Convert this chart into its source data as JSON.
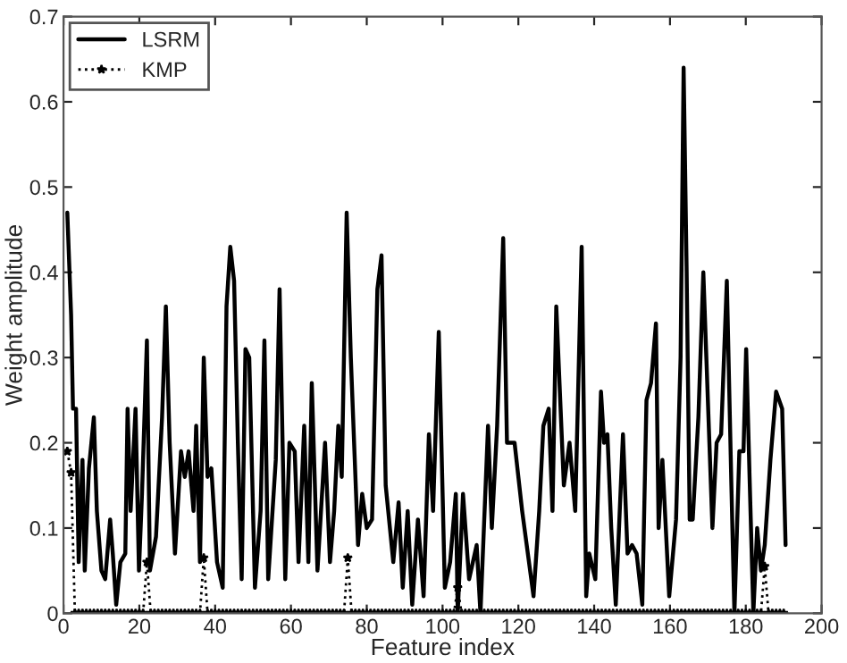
{
  "chart_data": {
    "type": "line",
    "xlabel": "Feature index",
    "ylabel": "Weight amplitude",
    "x": [
      1,
      2,
      3,
      4,
      5,
      6,
      7,
      8,
      9,
      10,
      11,
      12,
      13,
      14,
      15,
      16,
      17,
      18,
      19,
      20,
      21,
      22,
      23,
      24,
      25,
      26,
      27,
      28,
      29,
      30,
      31,
      32,
      33,
      34,
      35,
      36,
      37,
      38,
      39,
      40,
      41,
      42,
      43,
      44,
      45,
      46,
      47,
      48,
      49,
      50,
      51,
      52,
      53,
      54,
      55,
      56,
      57,
      58,
      59,
      60,
      61,
      62,
      63,
      64,
      65,
      66,
      67,
      68,
      69,
      70,
      71,
      72,
      73,
      74,
      75,
      76,
      77,
      78,
      79,
      80,
      81,
      82,
      83,
      84,
      85,
      86,
      87,
      88,
      89,
      90,
      91,
      92,
      93,
      94,
      95,
      96,
      97,
      98,
      99,
      100,
      101,
      102,
      103,
      104,
      105,
      106,
      107,
      108,
      109,
      110,
      111,
      112,
      113,
      114,
      115,
      116,
      117,
      118,
      119,
      120,
      121,
      122,
      123,
      124,
      125,
      126,
      127,
      128,
      129,
      130,
      131,
      132,
      133,
      134,
      135,
      136,
      137,
      138,
      139,
      140,
      141,
      142,
      143,
      144,
      145,
      146,
      147,
      148,
      149,
      150,
      151,
      152,
      153,
      154,
      155,
      156,
      157,
      158,
      159,
      160,
      161,
      162,
      163,
      164,
      165,
      166,
      167,
      168,
      169,
      170,
      171,
      172,
      173,
      174,
      175,
      176,
      177,
      178,
      179,
      180,
      181,
      182,
      183,
      184,
      185,
      186,
      187,
      188,
      189,
      190
    ],
    "series": [
      {
        "name": "LSRM",
        "color": "#000000",
        "marker": "none",
        "line_style": "solid",
        "x": [
          1,
          2,
          2.5,
          3.3,
          4,
          5,
          5.6,
          6.7,
          8,
          8.8,
          10,
          11,
          12.3,
          13,
          13.9,
          15,
          16.3,
          16.9,
          17.7,
          19,
          19.9,
          20.7,
          22,
          22.8,
          24.4,
          26,
          27,
          28,
          29.4,
          31,
          32,
          33,
          34.3,
          35,
          36,
          37,
          38,
          39,
          40.5,
          42,
          43,
          44,
          45,
          46,
          47,
          48,
          49,
          50.5,
          52,
          53,
          54,
          56,
          57,
          58.5,
          59.6,
          61,
          62,
          63.5,
          64.6,
          65.5,
          67,
          69,
          70.3,
          71.4,
          72.5,
          73.4,
          74.7,
          75.8,
          77.7,
          78.8,
          80,
          81.4,
          82.8,
          83.9,
          85,
          87,
          88.4,
          89.5,
          90.8,
          92,
          93.5,
          95,
          96.4,
          97.5,
          99,
          100.6,
          102,
          103.5,
          104,
          105.4,
          107,
          109,
          110,
          112,
          113,
          114.4,
          116,
          117,
          119,
          121,
          124,
          125.5,
          126.6,
          128,
          129,
          130,
          132,
          133.5,
          135,
          136.7,
          137.9,
          138.7,
          140.3,
          141.8,
          142.6,
          143.5,
          144.5,
          145.7,
          147.6,
          148.8,
          150,
          151.2,
          152.7,
          153.8,
          155,
          156.3,
          157,
          158,
          159.8,
          161.6,
          162.8,
          163.6,
          164.4,
          165.2,
          166,
          167.5,
          168.8,
          170.4,
          171.2,
          172.3,
          173.5,
          175,
          176.2,
          177,
          178.3,
          179.4,
          180.1,
          181,
          182,
          183,
          184,
          185,
          186.5,
          188,
          189.6,
          190.5
        ],
        "values": [
          0.47,
          0.35,
          0.24,
          0.24,
          0.06,
          0.18,
          0.05,
          0.17,
          0.23,
          0.12,
          0.05,
          0.04,
          0.11,
          0.07,
          0.01,
          0.06,
          0.07,
          0.24,
          0.12,
          0.24,
          0.05,
          0.14,
          0.32,
          0.05,
          0.09,
          0.23,
          0.36,
          0.2,
          0.07,
          0.19,
          0.16,
          0.19,
          0.12,
          0.22,
          0.06,
          0.3,
          0.16,
          0.17,
          0.06,
          0.03,
          0.36,
          0.43,
          0.39,
          0.2,
          0.04,
          0.31,
          0.3,
          0.03,
          0.12,
          0.32,
          0.04,
          0.18,
          0.38,
          0.04,
          0.2,
          0.19,
          0.06,
          0.22,
          0.06,
          0.27,
          0.05,
          0.2,
          0.06,
          0.12,
          0.22,
          0.16,
          0.47,
          0.3,
          0.08,
          0.14,
          0.1,
          0.11,
          0.38,
          0.42,
          0.15,
          0.06,
          0.13,
          0.03,
          0.12,
          0.01,
          0.11,
          0.02,
          0.21,
          0.12,
          0.33,
          0.03,
          0.06,
          0.14,
          0.0,
          0.14,
          0.04,
          0.08,
          0.0,
          0.22,
          0.1,
          0.22,
          0.44,
          0.2,
          0.2,
          0.12,
          0.02,
          0.12,
          0.22,
          0.24,
          0.12,
          0.36,
          0.15,
          0.2,
          0.12,
          0.43,
          0.02,
          0.07,
          0.04,
          0.26,
          0.2,
          0.21,
          0.1,
          0.01,
          0.21,
          0.07,
          0.08,
          0.07,
          0.01,
          0.25,
          0.27,
          0.34,
          0.1,
          0.18,
          0.02,
          0.11,
          0.3,
          0.64,
          0.4,
          0.11,
          0.11,
          0.23,
          0.4,
          0.2,
          0.1,
          0.2,
          0.21,
          0.39,
          0.15,
          0.0,
          0.19,
          0.19,
          0.31,
          0.16,
          0.0,
          0.1,
          0.05,
          0.08,
          0.18,
          0.26,
          0.24,
          0.08
        ]
      },
      {
        "name": "KMP",
        "color": "#000000",
        "marker": "star",
        "line_style": "dotted",
        "values": [
          0.19,
          0.165,
          0,
          0,
          0,
          0,
          0,
          0,
          0,
          0,
          0,
          0,
          0,
          0,
          0,
          0,
          0,
          0,
          0,
          0,
          0,
          0.06,
          0,
          0,
          0,
          0,
          0,
          0,
          0,
          0,
          0,
          0,
          0,
          0,
          0,
          0,
          0.065,
          0,
          0,
          0,
          0,
          0,
          0,
          0,
          0,
          0,
          0,
          0,
          0,
          0,
          0,
          0,
          0,
          0,
          0,
          0,
          0,
          0,
          0,
          0,
          0,
          0,
          0,
          0,
          0,
          0,
          0,
          0,
          0,
          0,
          0,
          0,
          0,
          0,
          0.065,
          0,
          0,
          0,
          0,
          0,
          0,
          0,
          0,
          0,
          0,
          0,
          0,
          0,
          0,
          0,
          0,
          0,
          0,
          0,
          0,
          0,
          0,
          0,
          0,
          0,
          0,
          0,
          0,
          0.03,
          0,
          0,
          0,
          0,
          0,
          0,
          0,
          0,
          0,
          0,
          0,
          0,
          0,
          0,
          0,
          0,
          0,
          0,
          0,
          0,
          0,
          0,
          0,
          0,
          0,
          0,
          0,
          0,
          0,
          0,
          0,
          0,
          0,
          0,
          0,
          0,
          0,
          0,
          0,
          0,
          0,
          0,
          0,
          0,
          0,
          0,
          0,
          0,
          0,
          0,
          0,
          0,
          0,
          0,
          0,
          0,
          0,
          0,
          0,
          0,
          0,
          0,
          0,
          0,
          0,
          0,
          0,
          0,
          0,
          0,
          0,
          0,
          0,
          0,
          0,
          0,
          0,
          0,
          0,
          0,
          0.055,
          0,
          0,
          0,
          0,
          0
        ]
      }
    ],
    "xlim": [
      0,
      200
    ],
    "xticks": [
      0,
      20,
      40,
      60,
      80,
      100,
      120,
      140,
      160,
      180,
      200
    ],
    "ylim": [
      0,
      0.7
    ],
    "yticks": [
      0,
      0.1,
      0.2,
      0.3,
      0.4,
      0.5,
      0.6,
      0.7
    ],
    "grid": false,
    "legend": "top left"
  }
}
